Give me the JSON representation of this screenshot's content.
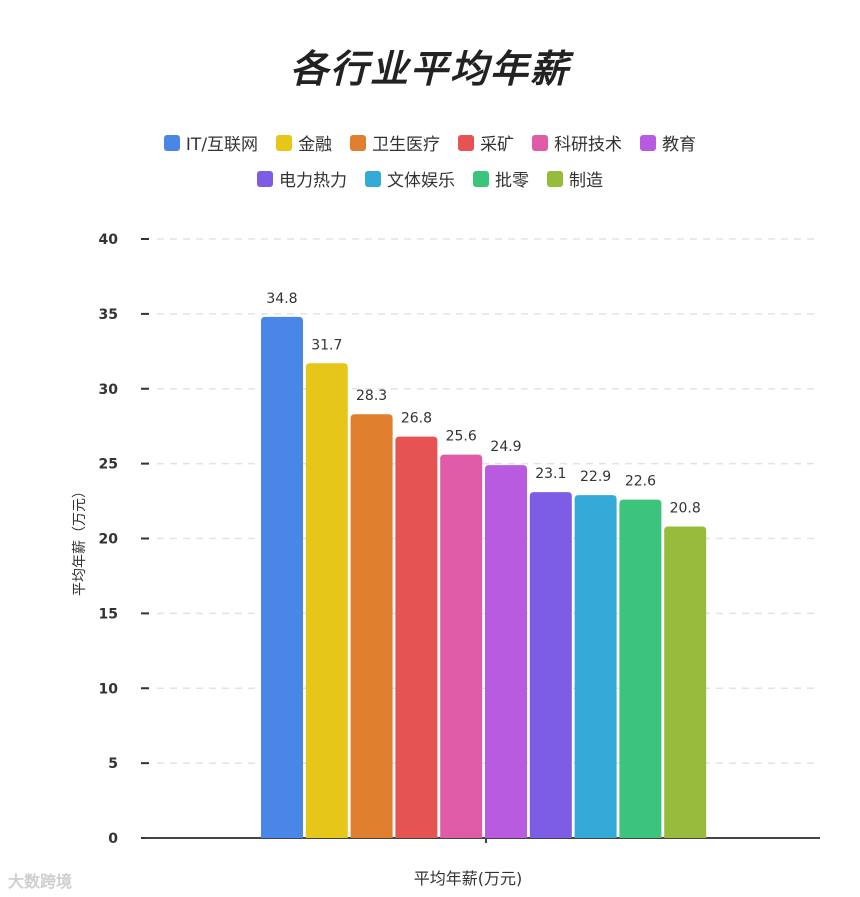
{
  "chart_data": {
    "type": "bar",
    "title": "各行业平均年薪",
    "ylabel": "平均年薪（万元）",
    "xlabel": "平均年薪(万元)",
    "ylim": [
      0,
      40
    ],
    "yticks": [
      0,
      5,
      10,
      15,
      20,
      25,
      30,
      35,
      40
    ],
    "grid": true,
    "legend_position": "top",
    "series": [
      {
        "name": "IT/互联网",
        "value": 34.8,
        "label": "34.8",
        "color": "#4a86e8"
      },
      {
        "name": "金融",
        "value": 31.7,
        "label": "31.7",
        "color": "#e6c619"
      },
      {
        "name": "卫生医疗",
        "value": 28.3,
        "label": "28.3",
        "color": "#e0802e"
      },
      {
        "name": "采矿",
        "value": 26.8,
        "label": "26.8",
        "color": "#e55353"
      },
      {
        "name": "科研技术",
        "value": 25.6,
        "label": "25.6",
        "color": "#e05ba8"
      },
      {
        "name": "教育",
        "value": 24.9,
        "label": "24.9",
        "color": "#b95be0"
      },
      {
        "name": "电力热力",
        "value": 23.1,
        "label": "23.1",
        "color": "#7d5ce6"
      },
      {
        "name": "文体娱乐",
        "value": 22.9,
        "label": "22.9",
        "color": "#34aad9"
      },
      {
        "name": "批零",
        "value": 22.6,
        "label": "22.6",
        "color": "#3cc47c"
      },
      {
        "name": "制造",
        "value": 20.8,
        "label": "20.8",
        "color": "#97bb3a"
      }
    ]
  },
  "watermark": "大数跨境"
}
